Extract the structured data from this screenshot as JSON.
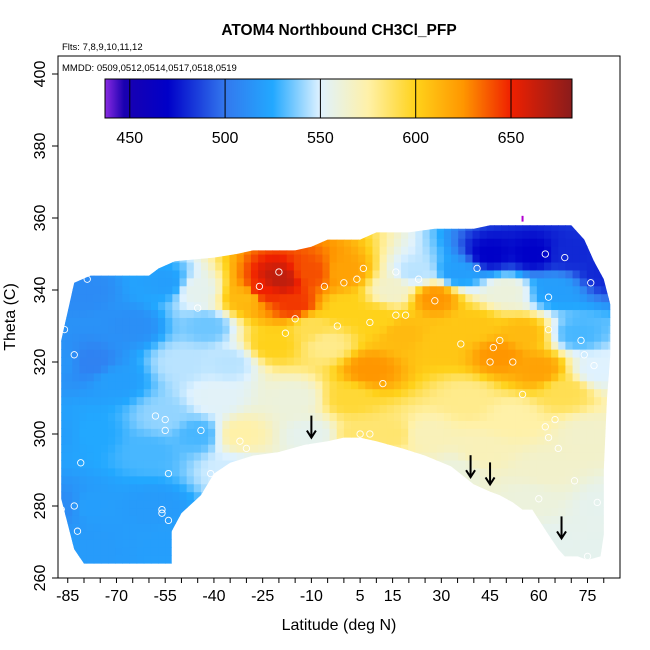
{
  "chart_data": {
    "type": "heatmap",
    "title": "ATOM4 Northbound CH3Cl_PFP",
    "annotations": {
      "flights": "Flts: 7,8,9,10,11,12",
      "dates": "MMDD: 0509,0512,0514,0517,0518,0519"
    },
    "xlabel": "Latitude (deg N)",
    "ylabel": "Theta (C)",
    "xlim": [
      -88,
      85
    ],
    "ylim": [
      260,
      405
    ],
    "x_ticks": [
      -85,
      -70,
      -55,
      -40,
      -25,
      -10,
      5,
      15,
      30,
      45,
      60,
      75
    ],
    "x_tick_labels": [
      "-85",
      "-70",
      "-55",
      "-40",
      "-25",
      "-10",
      "5",
      "15",
      "30",
      "45",
      "60",
      "75"
    ],
    "y_ticks": [
      260,
      280,
      300,
      320,
      340,
      360,
      380,
      400
    ],
    "y_tick_labels": [
      "260",
      "280",
      "300",
      "320",
      "340",
      "360",
      "380",
      "400"
    ],
    "colorbar": {
      "range": [
        437,
        682
      ],
      "ticks": [
        450,
        500,
        550,
        600,
        650
      ],
      "tick_labels": [
        "450",
        "500",
        "550",
        "600",
        "650"
      ],
      "stops": [
        {
          "v": 437,
          "c": "#8a2be2"
        },
        {
          "v": 447,
          "c": "#1a00b0"
        },
        {
          "v": 470,
          "c": "#0000c8"
        },
        {
          "v": 500,
          "c": "#3378ee"
        },
        {
          "v": 525,
          "c": "#22a8ff"
        },
        {
          "v": 550,
          "c": "#dff2ff"
        },
        {
          "v": 575,
          "c": "#fff1a8"
        },
        {
          "v": 600,
          "c": "#ffd21a"
        },
        {
          "v": 625,
          "c": "#ff9600"
        },
        {
          "v": 650,
          "c": "#ef2000"
        },
        {
          "v": 682,
          "c": "#8a1c1c"
        }
      ]
    },
    "field_nodes": [
      {
        "lat": -87,
        "th": 320,
        "v": 515
      },
      {
        "lat": -87,
        "th": 300,
        "v": 520
      },
      {
        "lat": -87,
        "th": 280,
        "v": 510
      },
      {
        "lat": -80,
        "th": 340,
        "v": 510
      },
      {
        "lat": -78,
        "th": 320,
        "v": 505
      },
      {
        "lat": -78,
        "th": 300,
        "v": 525
      },
      {
        "lat": -78,
        "th": 280,
        "v": 520
      },
      {
        "lat": -70,
        "th": 315,
        "v": 520
      },
      {
        "lat": -65,
        "th": 330,
        "v": 512
      },
      {
        "lat": -60,
        "th": 295,
        "v": 530
      },
      {
        "lat": -58,
        "th": 280,
        "v": 518
      },
      {
        "lat": -55,
        "th": 305,
        "v": 540
      },
      {
        "lat": -55,
        "th": 342,
        "v": 520
      },
      {
        "lat": -50,
        "th": 320,
        "v": 545
      },
      {
        "lat": -45,
        "th": 340,
        "v": 555
      },
      {
        "lat": -45,
        "th": 300,
        "v": 530
      },
      {
        "lat": -42,
        "th": 330,
        "v": 535
      },
      {
        "lat": -40,
        "th": 310,
        "v": 552
      },
      {
        "lat": -35,
        "th": 320,
        "v": 545
      },
      {
        "lat": -32,
        "th": 300,
        "v": 575
      },
      {
        "lat": -30,
        "th": 338,
        "v": 610
      },
      {
        "lat": -25,
        "th": 340,
        "v": 650
      },
      {
        "lat": -22,
        "th": 325,
        "v": 600
      },
      {
        "lat": -20,
        "th": 343,
        "v": 665
      },
      {
        "lat": -15,
        "th": 336,
        "v": 645
      },
      {
        "lat": -10,
        "th": 345,
        "v": 640
      },
      {
        "lat": -10,
        "th": 330,
        "v": 590
      },
      {
        "lat": -15,
        "th": 310,
        "v": 560
      },
      {
        "lat": -10,
        "th": 300,
        "v": 555
      },
      {
        "lat": -5,
        "th": 325,
        "v": 580
      },
      {
        "lat": 0,
        "th": 345,
        "v": 620
      },
      {
        "lat": 0,
        "th": 335,
        "v": 600
      },
      {
        "lat": 2,
        "th": 310,
        "v": 595
      },
      {
        "lat": 5,
        "th": 300,
        "v": 585
      },
      {
        "lat": 8,
        "th": 318,
        "v": 625
      },
      {
        "lat": 10,
        "th": 332,
        "v": 600
      },
      {
        "lat": 15,
        "th": 340,
        "v": 565
      },
      {
        "lat": 15,
        "th": 300,
        "v": 585
      },
      {
        "lat": 18,
        "th": 328,
        "v": 610
      },
      {
        "lat": 22,
        "th": 345,
        "v": 545
      },
      {
        "lat": 25,
        "th": 300,
        "v": 570
      },
      {
        "lat": 28,
        "th": 338,
        "v": 625
      },
      {
        "lat": 30,
        "th": 325,
        "v": 605
      },
      {
        "lat": 35,
        "th": 345,
        "v": 520
      },
      {
        "lat": 38,
        "th": 310,
        "v": 580
      },
      {
        "lat": 40,
        "th": 330,
        "v": 605
      },
      {
        "lat": 42,
        "th": 295,
        "v": 570
      },
      {
        "lat": 45,
        "th": 350,
        "v": 470
      },
      {
        "lat": 48,
        "th": 322,
        "v": 625
      },
      {
        "lat": 50,
        "th": 340,
        "v": 560
      },
      {
        "lat": 52,
        "th": 305,
        "v": 575
      },
      {
        "lat": 55,
        "th": 328,
        "v": 610
      },
      {
        "lat": 58,
        "th": 350,
        "v": 470
      },
      {
        "lat": 60,
        "th": 318,
        "v": 620
      },
      {
        "lat": 62,
        "th": 290,
        "v": 565
      },
      {
        "lat": 65,
        "th": 340,
        "v": 520
      },
      {
        "lat": 68,
        "th": 312,
        "v": 590
      },
      {
        "lat": 70,
        "th": 350,
        "v": 480
      },
      {
        "lat": 72,
        "th": 328,
        "v": 530
      },
      {
        "lat": 75,
        "th": 300,
        "v": 565
      },
      {
        "lat": 78,
        "th": 318,
        "v": 550
      },
      {
        "lat": 80,
        "th": 345,
        "v": 480
      },
      {
        "lat": 80,
        "th": 280,
        "v": 555
      },
      {
        "lat": 78,
        "th": 268,
        "v": 555
      },
      {
        "lat": 65,
        "th": 270,
        "v": 555
      },
      {
        "lat": 58,
        "th": 282,
        "v": 560
      },
      {
        "lat": -52,
        "th": 270,
        "v": 520
      },
      {
        "lat": -80,
        "th": 268,
        "v": 518
      },
      {
        "lat": -35,
        "th": 290,
        "v": 548
      },
      {
        "lat": 20,
        "th": 290,
        "v": 565
      },
      {
        "lat": 35,
        "th": 290,
        "v": 560
      }
    ],
    "field_top": [
      [
        -83,
        342
      ],
      [
        -78,
        344
      ],
      [
        -60,
        344
      ],
      [
        -57,
        346
      ],
      [
        -52,
        348
      ],
      [
        -40,
        349
      ],
      [
        -33,
        350
      ],
      [
        -28,
        351
      ],
      [
        -15,
        351
      ],
      [
        -10,
        352
      ],
      [
        -5,
        354
      ],
      [
        5,
        354
      ],
      [
        10,
        356
      ],
      [
        20,
        356
      ],
      [
        28,
        357
      ],
      [
        35,
        357
      ],
      [
        40,
        357
      ],
      [
        45,
        358
      ],
      [
        60,
        358
      ],
      [
        70,
        358
      ],
      [
        74,
        354
      ],
      [
        77,
        348
      ],
      [
        80,
        343
      ],
      [
        82,
        336
      ]
    ],
    "field_bottom": [
      [
        82,
        335
      ],
      [
        82,
        322
      ],
      [
        81,
        310
      ],
      [
        80,
        290
      ],
      [
        80,
        272
      ],
      [
        79,
        266
      ],
      [
        75,
        265
      ],
      [
        72,
        266
      ],
      [
        68,
        266
      ],
      [
        66,
        268
      ],
      [
        63,
        272
      ],
      [
        58,
        279
      ],
      [
        55,
        279
      ],
      [
        52,
        281
      ],
      [
        48,
        283
      ],
      [
        45,
        284
      ],
      [
        40,
        286
      ],
      [
        33,
        291
      ],
      [
        25,
        294
      ],
      [
        18,
        296
      ],
      [
        10,
        298
      ],
      [
        5,
        299
      ],
      [
        0,
        299
      ],
      [
        -5,
        298
      ],
      [
        -12,
        297
      ],
      [
        -20,
        295
      ],
      [
        -28,
        294
      ],
      [
        -35,
        292
      ],
      [
        -40,
        289
      ],
      [
        -44,
        283
      ],
      [
        -50,
        278
      ],
      [
        -53,
        273
      ],
      [
        -53,
        264
      ],
      [
        -80,
        264
      ],
      [
        -83,
        268
      ],
      [
        -85,
        275
      ],
      [
        -87,
        282
      ],
      [
        -87,
        326
      ]
    ],
    "samples": [
      [
        -86,
        329
      ],
      [
        -83,
        322
      ],
      [
        -81,
        292
      ],
      [
        -83,
        280
      ],
      [
        -82,
        273
      ],
      [
        -87,
        279
      ],
      [
        -79,
        343
      ],
      [
        -58,
        305
      ],
      [
        -55,
        304
      ],
      [
        -55,
        301
      ],
      [
        -54,
        289
      ],
      [
        -56,
        278
      ],
      [
        -56,
        279
      ],
      [
        -54,
        276
      ],
      [
        -45,
        335
      ],
      [
        -44,
        301
      ],
      [
        -41,
        289
      ],
      [
        -32,
        298
      ],
      [
        -30,
        296
      ],
      [
        -26,
        341
      ],
      [
        -20,
        345
      ],
      [
        -18,
        328
      ],
      [
        -15,
        332
      ],
      [
        -6,
        341
      ],
      [
        0,
        342
      ],
      [
        -2,
        330
      ],
      [
        4,
        343
      ],
      [
        6,
        346
      ],
      [
        8,
        331
      ],
      [
        8,
        300
      ],
      [
        5,
        300
      ],
      [
        12,
        314
      ],
      [
        16,
        345
      ],
      [
        16,
        333
      ],
      [
        19,
        333
      ],
      [
        23,
        343
      ],
      [
        28,
        337
      ],
      [
        36,
        325
      ],
      [
        41,
        346
      ],
      [
        45,
        320
      ],
      [
        46,
        324
      ],
      [
        48,
        326
      ],
      [
        52,
        320
      ],
      [
        55,
        311
      ],
      [
        62,
        350
      ],
      [
        63,
        338
      ],
      [
        63,
        329
      ],
      [
        62,
        302
      ],
      [
        63,
        299
      ],
      [
        65,
        304
      ],
      [
        66,
        296
      ],
      [
        60,
        282
      ],
      [
        68,
        349
      ],
      [
        73,
        326
      ],
      [
        74,
        322
      ],
      [
        76,
        342
      ],
      [
        77,
        319
      ],
      [
        75,
        266
      ],
      [
        78,
        281
      ],
      [
        71,
        287
      ]
    ],
    "arrows": [
      {
        "lat": -10,
        "th": 299
      },
      {
        "lat": 39,
        "th": 288
      },
      {
        "lat": 45,
        "th": 286
      },
      {
        "lat": 67,
        "th": 271
      }
    ],
    "top_marker": {
      "lat": 55,
      "th": 359
    }
  }
}
